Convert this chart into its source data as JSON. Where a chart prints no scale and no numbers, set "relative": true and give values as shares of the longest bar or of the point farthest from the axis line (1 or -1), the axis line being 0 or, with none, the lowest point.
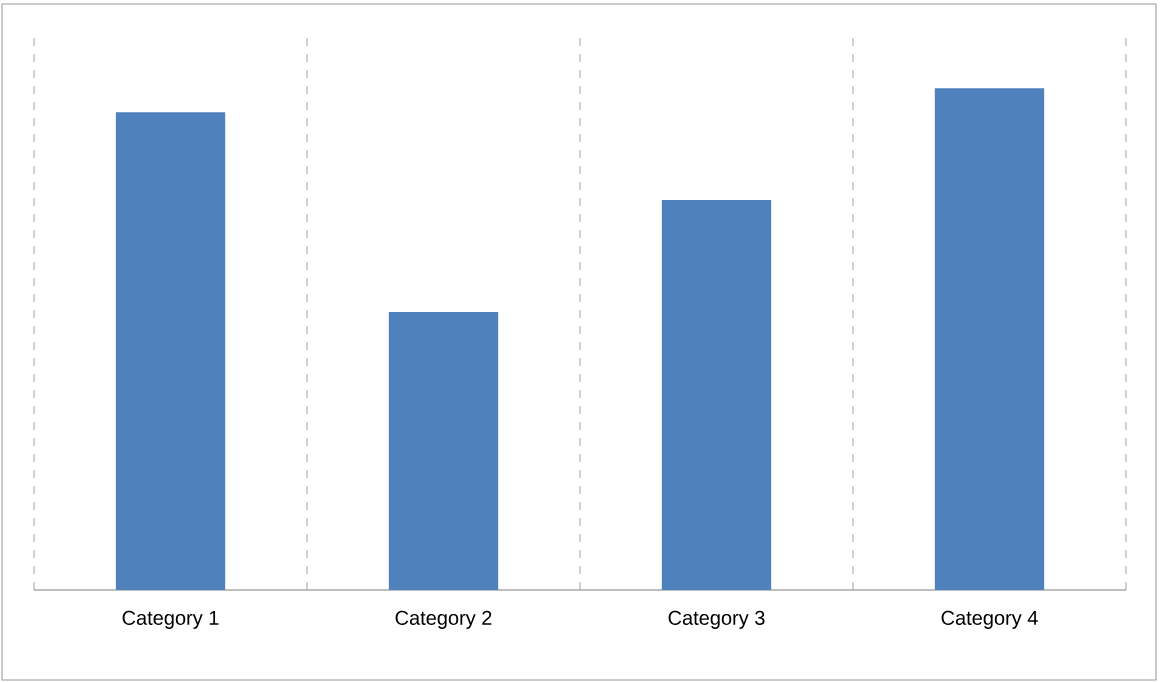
{
  "chart_data": {
    "type": "bar",
    "categories": [
      "Category 1",
      "Category 2",
      "Category 3",
      "Category 4"
    ],
    "values": [
      0.952,
      0.554,
      0.777,
      1
    ],
    "color": "#4f81bd",
    "relative": true,
    "grid": "x"
  }
}
